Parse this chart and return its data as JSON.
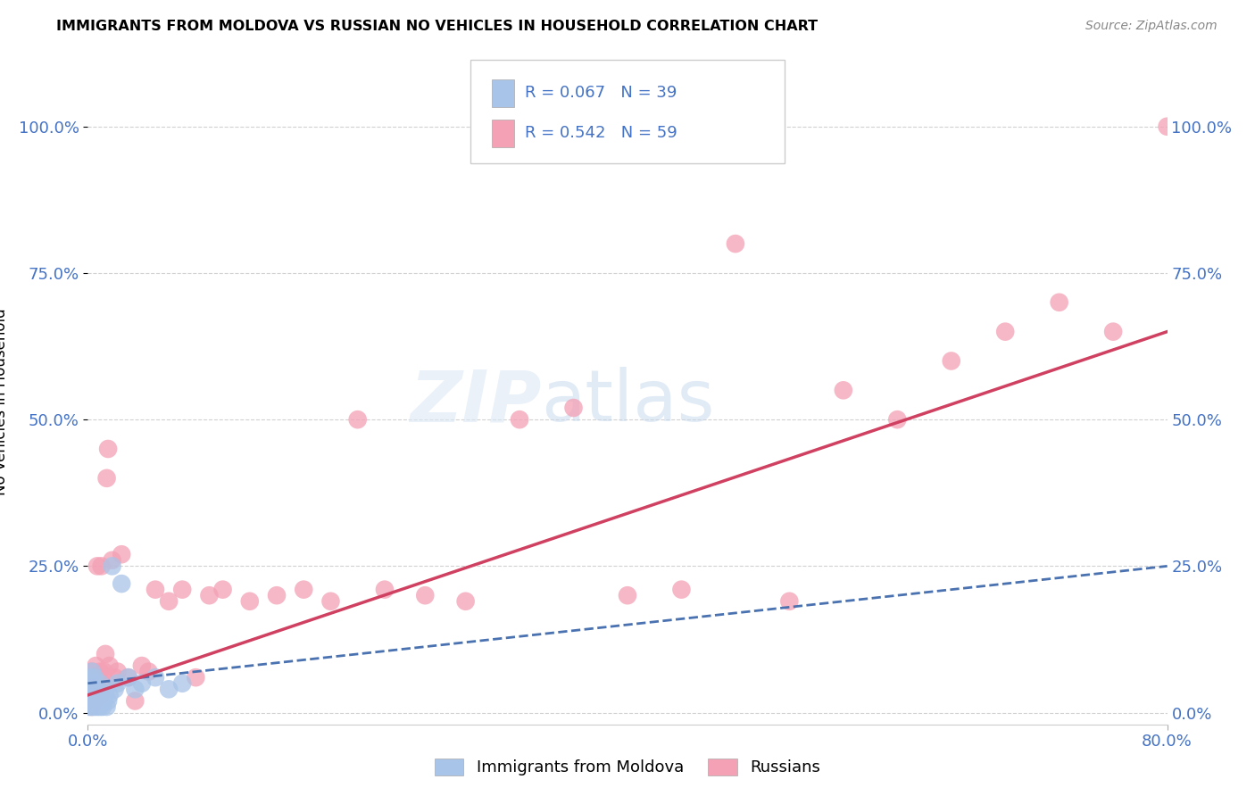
{
  "title": "IMMIGRANTS FROM MOLDOVA VS RUSSIAN NO VEHICLES IN HOUSEHOLD CORRELATION CHART",
  "source": "Source: ZipAtlas.com",
  "ylabel": "No Vehicles in Household",
  "ytick_labels": [
    "0.0%",
    "25.0%",
    "50.0%",
    "75.0%",
    "100.0%"
  ],
  "ytick_values": [
    0.0,
    0.25,
    0.5,
    0.75,
    1.0
  ],
  "xlim": [
    0.0,
    0.8
  ],
  "ylim": [
    -0.02,
    1.08
  ],
  "legend_label1": "Immigrants from Moldova",
  "legend_label2": "Russians",
  "color_blue": "#a8c4e8",
  "color_pink": "#f4a0b5",
  "line_color_blue": "#4a72b0",
  "line_color_pink": "#d04060",
  "watermark_zip": "ZIP",
  "watermark_atlas": "atlas",
  "moldova_x": [
    0.001,
    0.001,
    0.002,
    0.002,
    0.002,
    0.003,
    0.003,
    0.003,
    0.004,
    0.004,
    0.005,
    0.005,
    0.005,
    0.006,
    0.006,
    0.007,
    0.007,
    0.008,
    0.008,
    0.009,
    0.009,
    0.01,
    0.01,
    0.011,
    0.012,
    0.013,
    0.014,
    0.015,
    0.016,
    0.018,
    0.02,
    0.022,
    0.025,
    0.03,
    0.035,
    0.04,
    0.05,
    0.06,
    0.07
  ],
  "moldova_y": [
    0.01,
    0.03,
    0.02,
    0.05,
    0.06,
    0.01,
    0.04,
    0.07,
    0.02,
    0.05,
    0.01,
    0.03,
    0.06,
    0.02,
    0.04,
    0.01,
    0.03,
    0.02,
    0.04,
    0.01,
    0.05,
    0.02,
    0.03,
    0.01,
    0.02,
    0.03,
    0.01,
    0.02,
    0.03,
    0.25,
    0.04,
    0.05,
    0.22,
    0.06,
    0.04,
    0.05,
    0.06,
    0.04,
    0.05
  ],
  "russian_x": [
    0.001,
    0.002,
    0.002,
    0.003,
    0.003,
    0.004,
    0.004,
    0.005,
    0.005,
    0.006,
    0.006,
    0.007,
    0.007,
    0.008,
    0.008,
    0.009,
    0.01,
    0.01,
    0.011,
    0.012,
    0.013,
    0.014,
    0.015,
    0.016,
    0.018,
    0.02,
    0.022,
    0.025,
    0.03,
    0.035,
    0.04,
    0.045,
    0.05,
    0.06,
    0.07,
    0.08,
    0.09,
    0.1,
    0.12,
    0.14,
    0.16,
    0.18,
    0.2,
    0.22,
    0.25,
    0.28,
    0.32,
    0.36,
    0.4,
    0.44,
    0.48,
    0.52,
    0.56,
    0.6,
    0.64,
    0.68,
    0.72,
    0.76,
    0.8
  ],
  "russian_y": [
    0.03,
    0.05,
    0.02,
    0.07,
    0.01,
    0.06,
    0.03,
    0.05,
    0.02,
    0.04,
    0.08,
    0.03,
    0.25,
    0.06,
    0.04,
    0.07,
    0.03,
    0.25,
    0.05,
    0.07,
    0.1,
    0.4,
    0.45,
    0.08,
    0.26,
    0.06,
    0.07,
    0.27,
    0.06,
    0.02,
    0.08,
    0.07,
    0.21,
    0.19,
    0.21,
    0.06,
    0.2,
    0.21,
    0.19,
    0.2,
    0.21,
    0.19,
    0.5,
    0.21,
    0.2,
    0.19,
    0.5,
    0.52,
    0.2,
    0.21,
    0.8,
    0.19,
    0.55,
    0.5,
    0.6,
    0.65,
    0.7,
    0.65,
    1.0
  ]
}
